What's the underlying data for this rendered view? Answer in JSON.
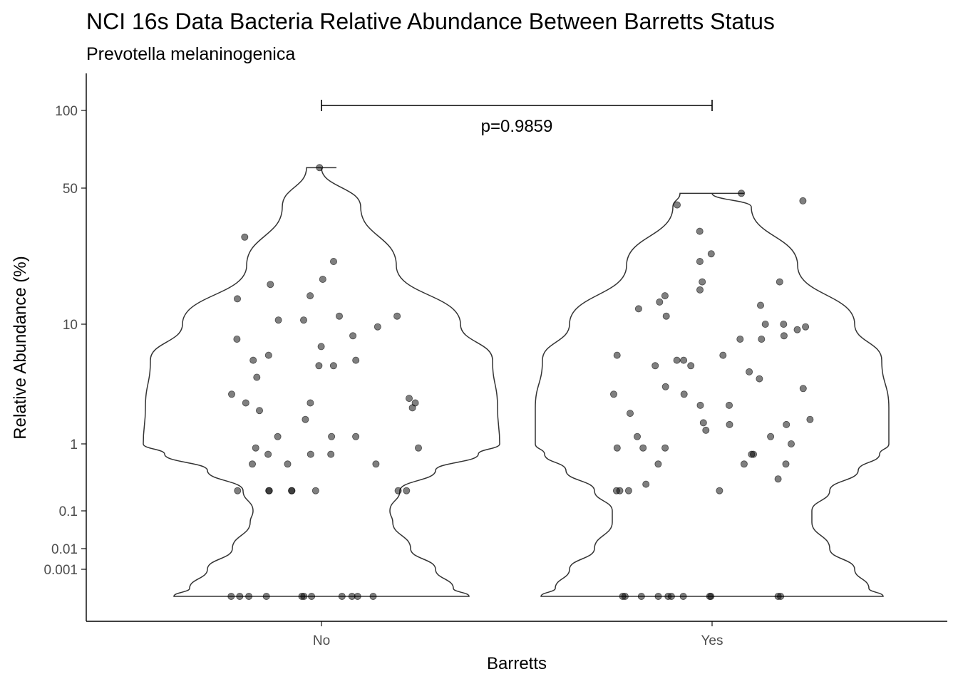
{
  "chart_data": {
    "type": "violin",
    "title": "NCI 16s Data Bacteria Relative Abundance Between Barretts Status",
    "subtitle": "Prevotella melaninogenica",
    "xlabel": "Barretts",
    "ylabel": "Relative Abundance (%)",
    "categories": [
      "No",
      "Yes"
    ],
    "y_scale": "pseudo-log",
    "y_ticks": [
      100,
      50,
      10,
      1,
      0.1,
      0.01,
      0.001
    ],
    "y_tick_labels": [
      "100",
      "50",
      "10",
      "1",
      "0.1",
      "0.01",
      "0.001"
    ],
    "annotation": {
      "groups": [
        "No",
        "Yes"
      ],
      "label": "p=0.9859"
    },
    "series": [
      {
        "category": "No",
        "max": 60,
        "points": [
          60,
          21,
          28,
          16,
          14,
          17,
          13.5,
          11,
          11,
          10.5,
          10.5,
          9.5,
          8,
          7.5,
          6.5,
          5.5,
          5,
          5,
          4.5,
          4.5,
          3.6,
          2.6,
          2.4,
          2.2,
          2.2,
          2.2,
          2.0,
          1.9,
          1.6,
          1.15,
          1.15,
          1.15,
          0.87,
          0.87,
          0.7,
          0.7,
          0.7,
          0.5,
          0.5,
          0.5,
          0.2,
          0.2,
          0.2,
          0.2,
          0.2,
          0.2,
          0.2,
          0.2,
          0,
          0,
          0,
          0,
          0,
          0,
          0,
          0,
          0,
          0,
          0
        ],
        "grid": false
      },
      {
        "category": "Yes",
        "max": 47,
        "points": [
          47,
          43,
          41,
          30,
          23,
          21,
          16.5,
          16.5,
          15,
          14,
          13,
          12.5,
          12,
          11,
          10,
          10,
          9.5,
          9,
          8,
          7.5,
          7.5,
          5.5,
          5.5,
          5,
          5,
          4.5,
          4.5,
          4,
          3.5,
          3,
          2.9,
          2.6,
          2.6,
          2.1,
          2.1,
          1.8,
          1.6,
          1.5,
          1.45,
          1.45,
          1.3,
          1.15,
          1.15,
          1.0,
          0.87,
          0.87,
          0.87,
          0.7,
          0.7,
          0.5,
          0.5,
          0.5,
          0.3,
          0.25,
          0.2,
          0.2,
          0.2,
          0.2,
          0,
          0,
          0,
          0,
          0,
          0,
          0,
          0,
          0,
          0,
          0
        ]
      }
    ]
  }
}
